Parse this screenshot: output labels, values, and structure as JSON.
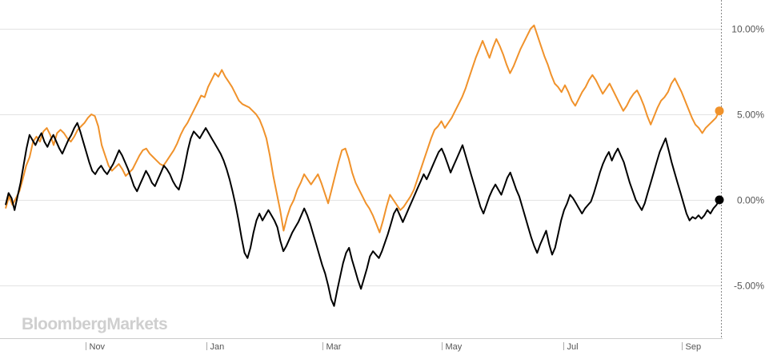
{
  "chart_data": {
    "type": "line",
    "watermark": "BloombergMarkets",
    "ylim": [
      -7.5,
      11.5
    ],
    "y_ticks": [
      10,
      5,
      0,
      -5
    ],
    "y_tick_labels": [
      "10.00%",
      "5.00%",
      "0.00%",
      "-5.00%"
    ],
    "x_ticks": [
      "Nov",
      "Jan",
      "Mar",
      "May",
      "Jul",
      "Sep"
    ],
    "grid": true,
    "series": [
      {
        "color": "#f0922b",
        "end_label": "5.20%",
        "values": [
          -0.5,
          0.2,
          -0.3,
          0.1,
          0.5,
          1.2,
          2.0,
          2.5,
          3.4,
          3.7,
          3.4,
          4.0,
          4.2,
          3.8,
          3.2,
          3.9,
          4.1,
          3.9,
          3.6,
          3.4,
          3.7,
          4.1,
          4.3,
          4.5,
          4.8,
          5.0,
          4.9,
          4.3,
          3.2,
          2.6,
          2.0,
          1.7,
          1.9,
          2.1,
          1.8,
          1.4,
          1.6,
          1.8,
          2.2,
          2.6,
          2.9,
          3.0,
          2.7,
          2.5,
          2.3,
          2.1,
          2.0,
          2.3,
          2.6,
          2.9,
          3.3,
          3.8,
          4.2,
          4.5,
          4.9,
          5.3,
          5.7,
          6.1,
          6.0,
          6.6,
          7.0,
          7.4,
          7.2,
          7.6,
          7.2,
          6.9,
          6.6,
          6.2,
          5.8,
          5.6,
          5.5,
          5.4,
          5.2,
          5.0,
          4.7,
          4.2,
          3.6,
          2.6,
          1.4,
          0.4,
          -0.6,
          -1.8,
          -1.0,
          -0.4,
          0.0,
          0.6,
          1.0,
          1.5,
          1.2,
          0.9,
          1.2,
          1.5,
          1.0,
          0.4,
          -0.2,
          0.6,
          1.4,
          2.2,
          2.9,
          3.0,
          2.4,
          1.6,
          1.0,
          0.6,
          0.2,
          -0.2,
          -0.5,
          -0.9,
          -1.4,
          -1.9,
          -1.2,
          -0.4,
          0.3,
          0.0,
          -0.3,
          -0.6,
          -0.4,
          -0.1,
          0.2,
          0.6,
          1.2,
          1.8,
          2.4,
          3.0,
          3.6,
          4.1,
          4.3,
          4.6,
          4.2,
          4.5,
          4.8,
          5.2,
          5.6,
          6.0,
          6.5,
          7.1,
          7.7,
          8.3,
          8.8,
          9.3,
          8.8,
          8.3,
          8.9,
          9.4,
          9.0,
          8.5,
          7.9,
          7.4,
          7.8,
          8.3,
          8.8,
          9.2,
          9.6,
          10.0,
          10.2,
          9.6,
          9.0,
          8.4,
          7.9,
          7.3,
          6.8,
          6.6,
          6.3,
          6.7,
          6.3,
          5.8,
          5.5,
          5.9,
          6.3,
          6.6,
          7.0,
          7.3,
          7.0,
          6.6,
          6.2,
          6.5,
          6.8,
          6.4,
          6.0,
          5.6,
          5.2,
          5.5,
          5.9,
          6.2,
          6.4,
          6.0,
          5.5,
          4.9,
          4.4,
          4.9,
          5.4,
          5.8,
          6.0,
          6.3,
          6.8,
          7.1,
          6.7,
          6.3,
          5.8,
          5.3,
          4.8,
          4.4,
          4.2,
          3.9,
          4.2,
          4.4,
          4.6,
          4.8,
          5.2
        ]
      },
      {
        "color": "#000000",
        "end_label": "0.00%",
        "values": [
          -0.3,
          0.4,
          0.1,
          -0.6,
          0.2,
          1.0,
          2.0,
          3.0,
          3.8,
          3.5,
          3.2,
          3.6,
          3.9,
          3.4,
          3.1,
          3.5,
          3.8,
          3.4,
          3.0,
          2.7,
          3.1,
          3.5,
          3.8,
          4.2,
          4.5,
          4.0,
          3.4,
          2.8,
          2.2,
          1.7,
          1.5,
          1.8,
          2.0,
          1.7,
          1.5,
          1.8,
          2.1,
          2.5,
          2.9,
          2.6,
          2.2,
          1.8,
          1.3,
          0.8,
          0.5,
          0.9,
          1.3,
          1.7,
          1.4,
          1.0,
          0.8,
          1.2,
          1.6,
          2.0,
          1.8,
          1.5,
          1.1,
          0.8,
          0.6,
          1.2,
          2.0,
          2.9,
          3.6,
          4.0,
          3.8,
          3.6,
          3.9,
          4.2,
          3.9,
          3.6,
          3.3,
          3.0,
          2.7,
          2.3,
          1.8,
          1.2,
          0.5,
          -0.3,
          -1.2,
          -2.2,
          -3.1,
          -3.4,
          -2.8,
          -1.9,
          -1.2,
          -0.8,
          -1.2,
          -0.9,
          -0.6,
          -0.9,
          -1.2,
          -1.6,
          -2.4,
          -3.0,
          -2.7,
          -2.3,
          -1.9,
          -1.6,
          -1.3,
          -0.9,
          -0.5,
          -0.9,
          -1.4,
          -2.0,
          -2.6,
          -3.2,
          -3.8,
          -4.3,
          -5.0,
          -5.8,
          -6.2,
          -5.3,
          -4.5,
          -3.7,
          -3.1,
          -2.8,
          -3.5,
          -4.1,
          -4.7,
          -5.2,
          -4.6,
          -4.0,
          -3.3,
          -3.0,
          -3.2,
          -3.4,
          -3.0,
          -2.5,
          -2.0,
          -1.4,
          -0.8,
          -0.5,
          -0.9,
          -1.3,
          -0.9,
          -0.5,
          -0.1,
          0.3,
          0.7,
          1.1,
          1.5,
          1.2,
          1.6,
          2.0,
          2.4,
          2.8,
          3.0,
          2.6,
          2.1,
          1.6,
          2.0,
          2.4,
          2.8,
          3.2,
          2.6,
          2.0,
          1.4,
          0.8,
          0.2,
          -0.4,
          -0.8,
          -0.3,
          0.2,
          0.6,
          0.9,
          0.6,
          0.3,
          0.8,
          1.3,
          1.6,
          1.1,
          0.6,
          0.2,
          -0.4,
          -1.0,
          -1.6,
          -2.2,
          -2.7,
          -3.1,
          -2.6,
          -2.2,
          -1.8,
          -2.6,
          -3.2,
          -2.8,
          -2.0,
          -1.2,
          -0.6,
          -0.2,
          0.3,
          0.1,
          -0.2,
          -0.5,
          -0.8,
          -0.5,
          -0.3,
          -0.1,
          0.4,
          1.0,
          1.6,
          2.1,
          2.5,
          2.8,
          2.3,
          2.7,
          3.0,
          2.6,
          2.2,
          1.6,
          1.0,
          0.5,
          0.0,
          -0.3,
          -0.6,
          -0.2,
          0.4,
          1.0,
          1.6,
          2.2,
          2.8,
          3.2,
          3.6,
          2.9,
          2.2,
          1.6,
          1.0,
          0.4,
          -0.2,
          -0.8,
          -1.2,
          -1.0,
          -1.1,
          -0.9,
          -1.1,
          -0.9,
          -0.6,
          -0.8,
          -0.5,
          -0.3,
          0.0
        ]
      }
    ]
  }
}
